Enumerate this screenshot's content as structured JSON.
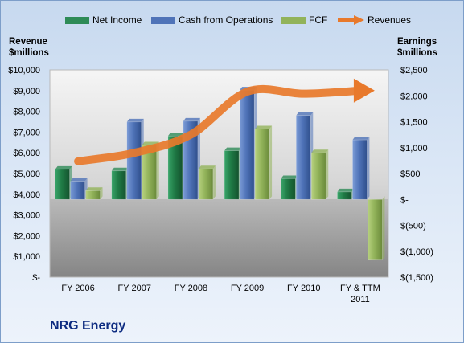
{
  "chart_data": {
    "type": "bar",
    "title": "",
    "footer_title": "NRG Energy",
    "categories": [
      "FY 2006",
      "FY 2007",
      "FY 2008",
      "FY 2009",
      "FY 2010",
      "FY & TTM 2011"
    ],
    "category_lines": [
      [
        "FY 2006"
      ],
      [
        "FY 2007"
      ],
      [
        "FY 2008"
      ],
      [
        "FY 2009"
      ],
      [
        "FY 2010"
      ],
      [
        "FY & TTM",
        "2011"
      ]
    ],
    "left_axis": {
      "title_lines": [
        "Revenue",
        "$millions"
      ],
      "range": [
        0,
        10000
      ],
      "ticks": [
        0,
        1000,
        2000,
        3000,
        4000,
        5000,
        6000,
        7000,
        8000,
        9000,
        10000
      ],
      "tick_labels": [
        "$-",
        "$1,000",
        "$2,000",
        "$3,000",
        "$4,000",
        "$5,000",
        "$6,000",
        "$7,000",
        "$8,000",
        "$9,000",
        "$10,000"
      ]
    },
    "right_axis": {
      "title_lines": [
        "Earnings",
        "$millions"
      ],
      "range": [
        -1500,
        2500
      ],
      "ticks": [
        -1500,
        -1000,
        -500,
        0,
        500,
        1000,
        1500,
        2000,
        2500
      ],
      "tick_labels": [
        "$(1,500)",
        "$(1,000)",
        "$(500)",
        "$-",
        "$500",
        "$1,000",
        "$1,500",
        "$2,000",
        "$2,500"
      ]
    },
    "series": [
      {
        "name": "Net Income",
        "axis": "right",
        "kind": "bar",
        "values": [
          580,
          550,
          1225,
          940,
          400,
          145
        ],
        "color": "#2e8b57"
      },
      {
        "name": "Cash from Operations",
        "axis": "right",
        "kind": "bar",
        "values": [
          350,
          1495,
          1510,
          2110,
          1620,
          1150
        ],
        "color": "#4f73b8"
      },
      {
        "name": "FCF",
        "axis": "right",
        "kind": "bar",
        "values": [
          170,
          1050,
          590,
          1360,
          900,
          -1170
        ],
        "color": "#92b35a"
      },
      {
        "name": "Revenues",
        "axis": "left",
        "kind": "line",
        "values": [
          5590,
          6000,
          6880,
          8950,
          8850,
          9000
        ],
        "color": "#e8792b"
      }
    ],
    "legend_position": "top",
    "grid": false
  }
}
